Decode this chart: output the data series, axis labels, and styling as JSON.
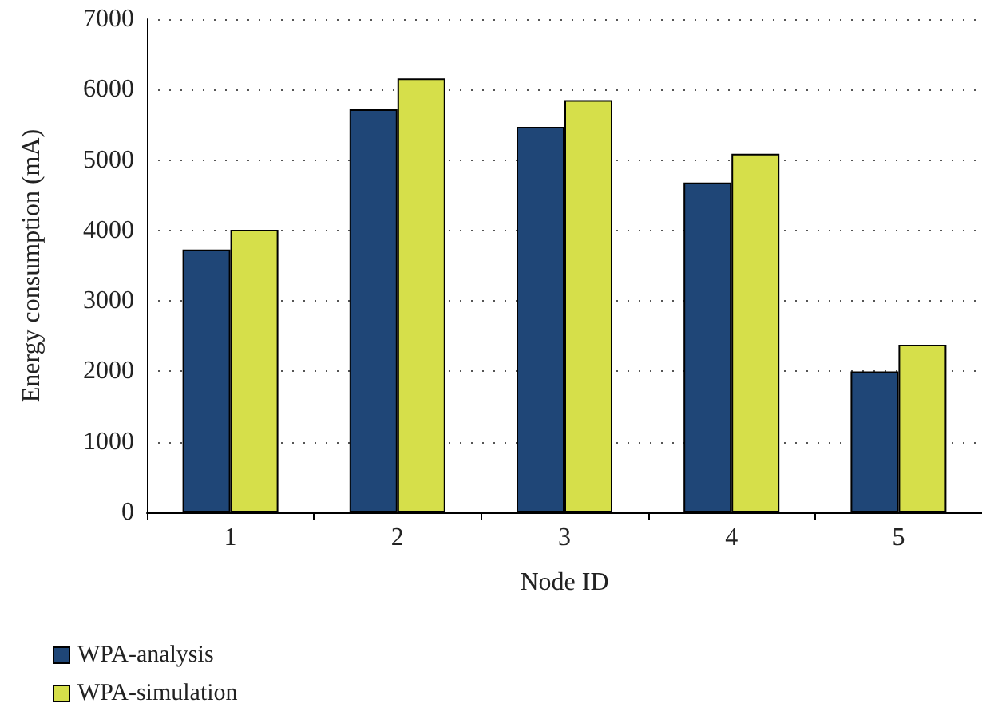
{
  "chart_data": {
    "type": "bar",
    "xlabel": "Node ID",
    "ylabel": "Energy consumption (mA)",
    "categories": [
      "1",
      "2",
      "3",
      "4",
      "5"
    ],
    "series": [
      {
        "name": "WPA-analysis",
        "color": "#1f4677",
        "values": [
          3730,
          5720,
          5470,
          4680,
          2000
        ]
      },
      {
        "name": "WPA-simulation",
        "color": "#d6df4a",
        "values": [
          4010,
          6160,
          5850,
          5090,
          2380
        ]
      }
    ],
    "ylim": [
      0,
      7000
    ],
    "yticks": [
      0,
      1000,
      2000,
      3000,
      4000,
      5000,
      6000,
      7000
    ],
    "grid": "y",
    "legend": "bottom left"
  }
}
